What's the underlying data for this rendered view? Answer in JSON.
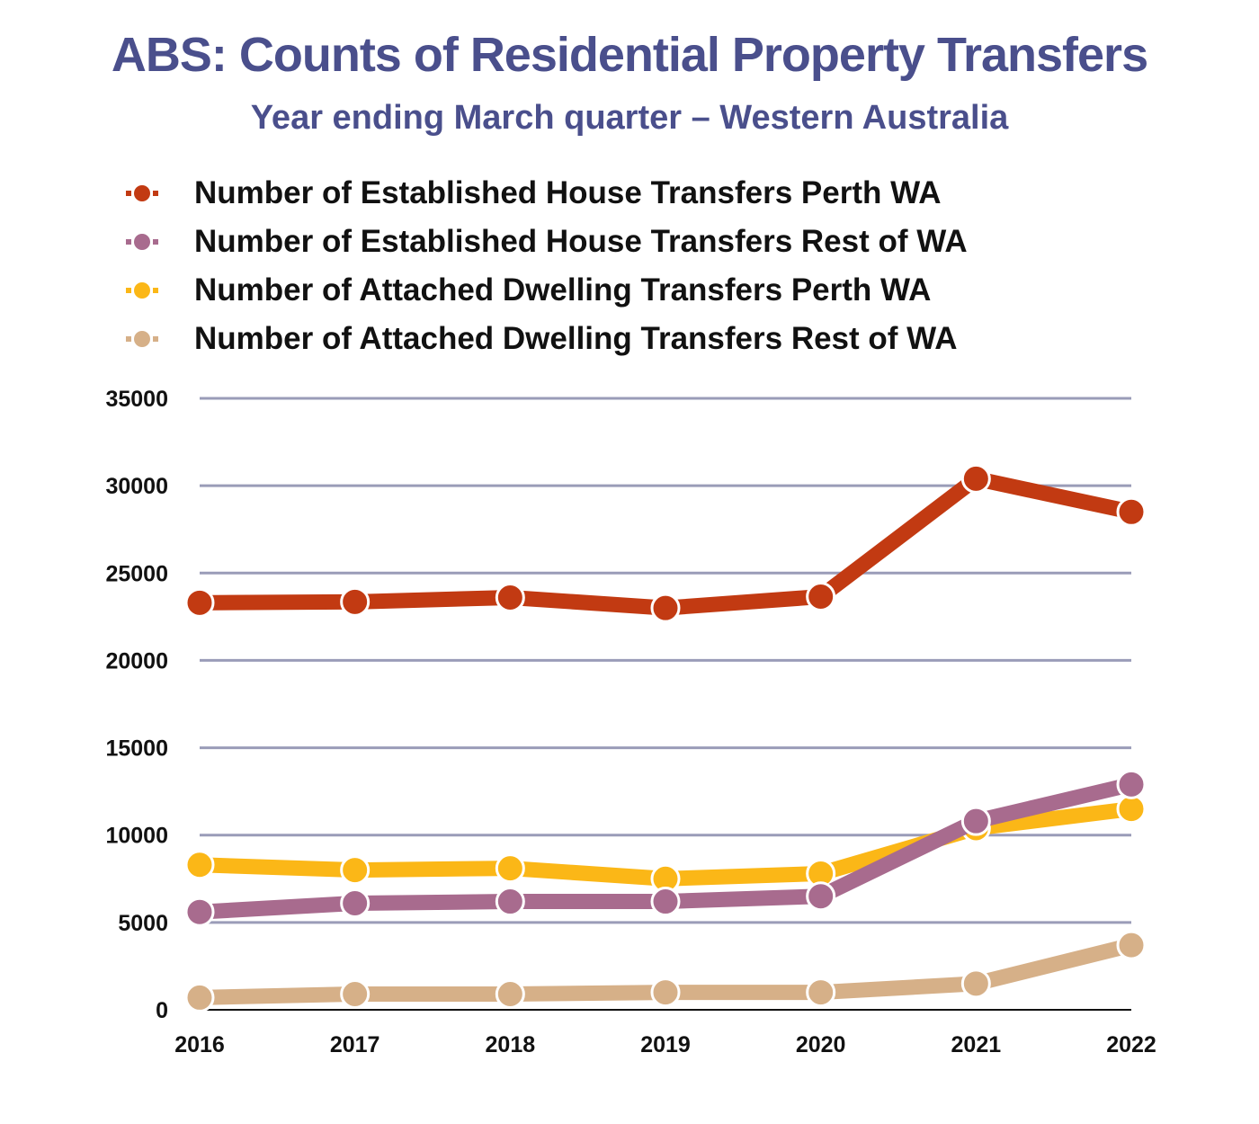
{
  "chart_data": {
    "type": "line",
    "title": "ABS: Counts of Residential Property Transfers",
    "subtitle": "Year ending March quarter – Western Australia",
    "xlabel": "",
    "ylabel": "",
    "x": [
      "2016",
      "2017",
      "2018",
      "2019",
      "2020",
      "2021",
      "2022"
    ],
    "ylim": [
      0,
      35000
    ],
    "yticks": [
      "0",
      "5000",
      "10000",
      "15000",
      "20000",
      "25000",
      "30000",
      "35000"
    ],
    "grid": true,
    "legend_position": "top",
    "series": [
      {
        "name": "Number of Established House Transfers Perth WA",
        "color": "#c23a12",
        "values": [
          23300,
          23350,
          23600,
          23000,
          23650,
          30400,
          28500
        ]
      },
      {
        "name": "Number of Established House Transfers Rest of WA",
        "color": "#a86b8e",
        "values": [
          5600,
          6100,
          6200,
          6200,
          6500,
          10800,
          12900
        ]
      },
      {
        "name": "Number of Attached Dwelling Transfers Perth WA",
        "color": "#fbb717",
        "values": [
          8300,
          8000,
          8100,
          7500,
          7800,
          10400,
          11500
        ]
      },
      {
        "name": "Number of Attached Dwelling Transfers Rest of WA",
        "color": "#d6b088",
        "values": [
          700,
          900,
          900,
          1000,
          1000,
          1500,
          3700
        ]
      }
    ]
  }
}
